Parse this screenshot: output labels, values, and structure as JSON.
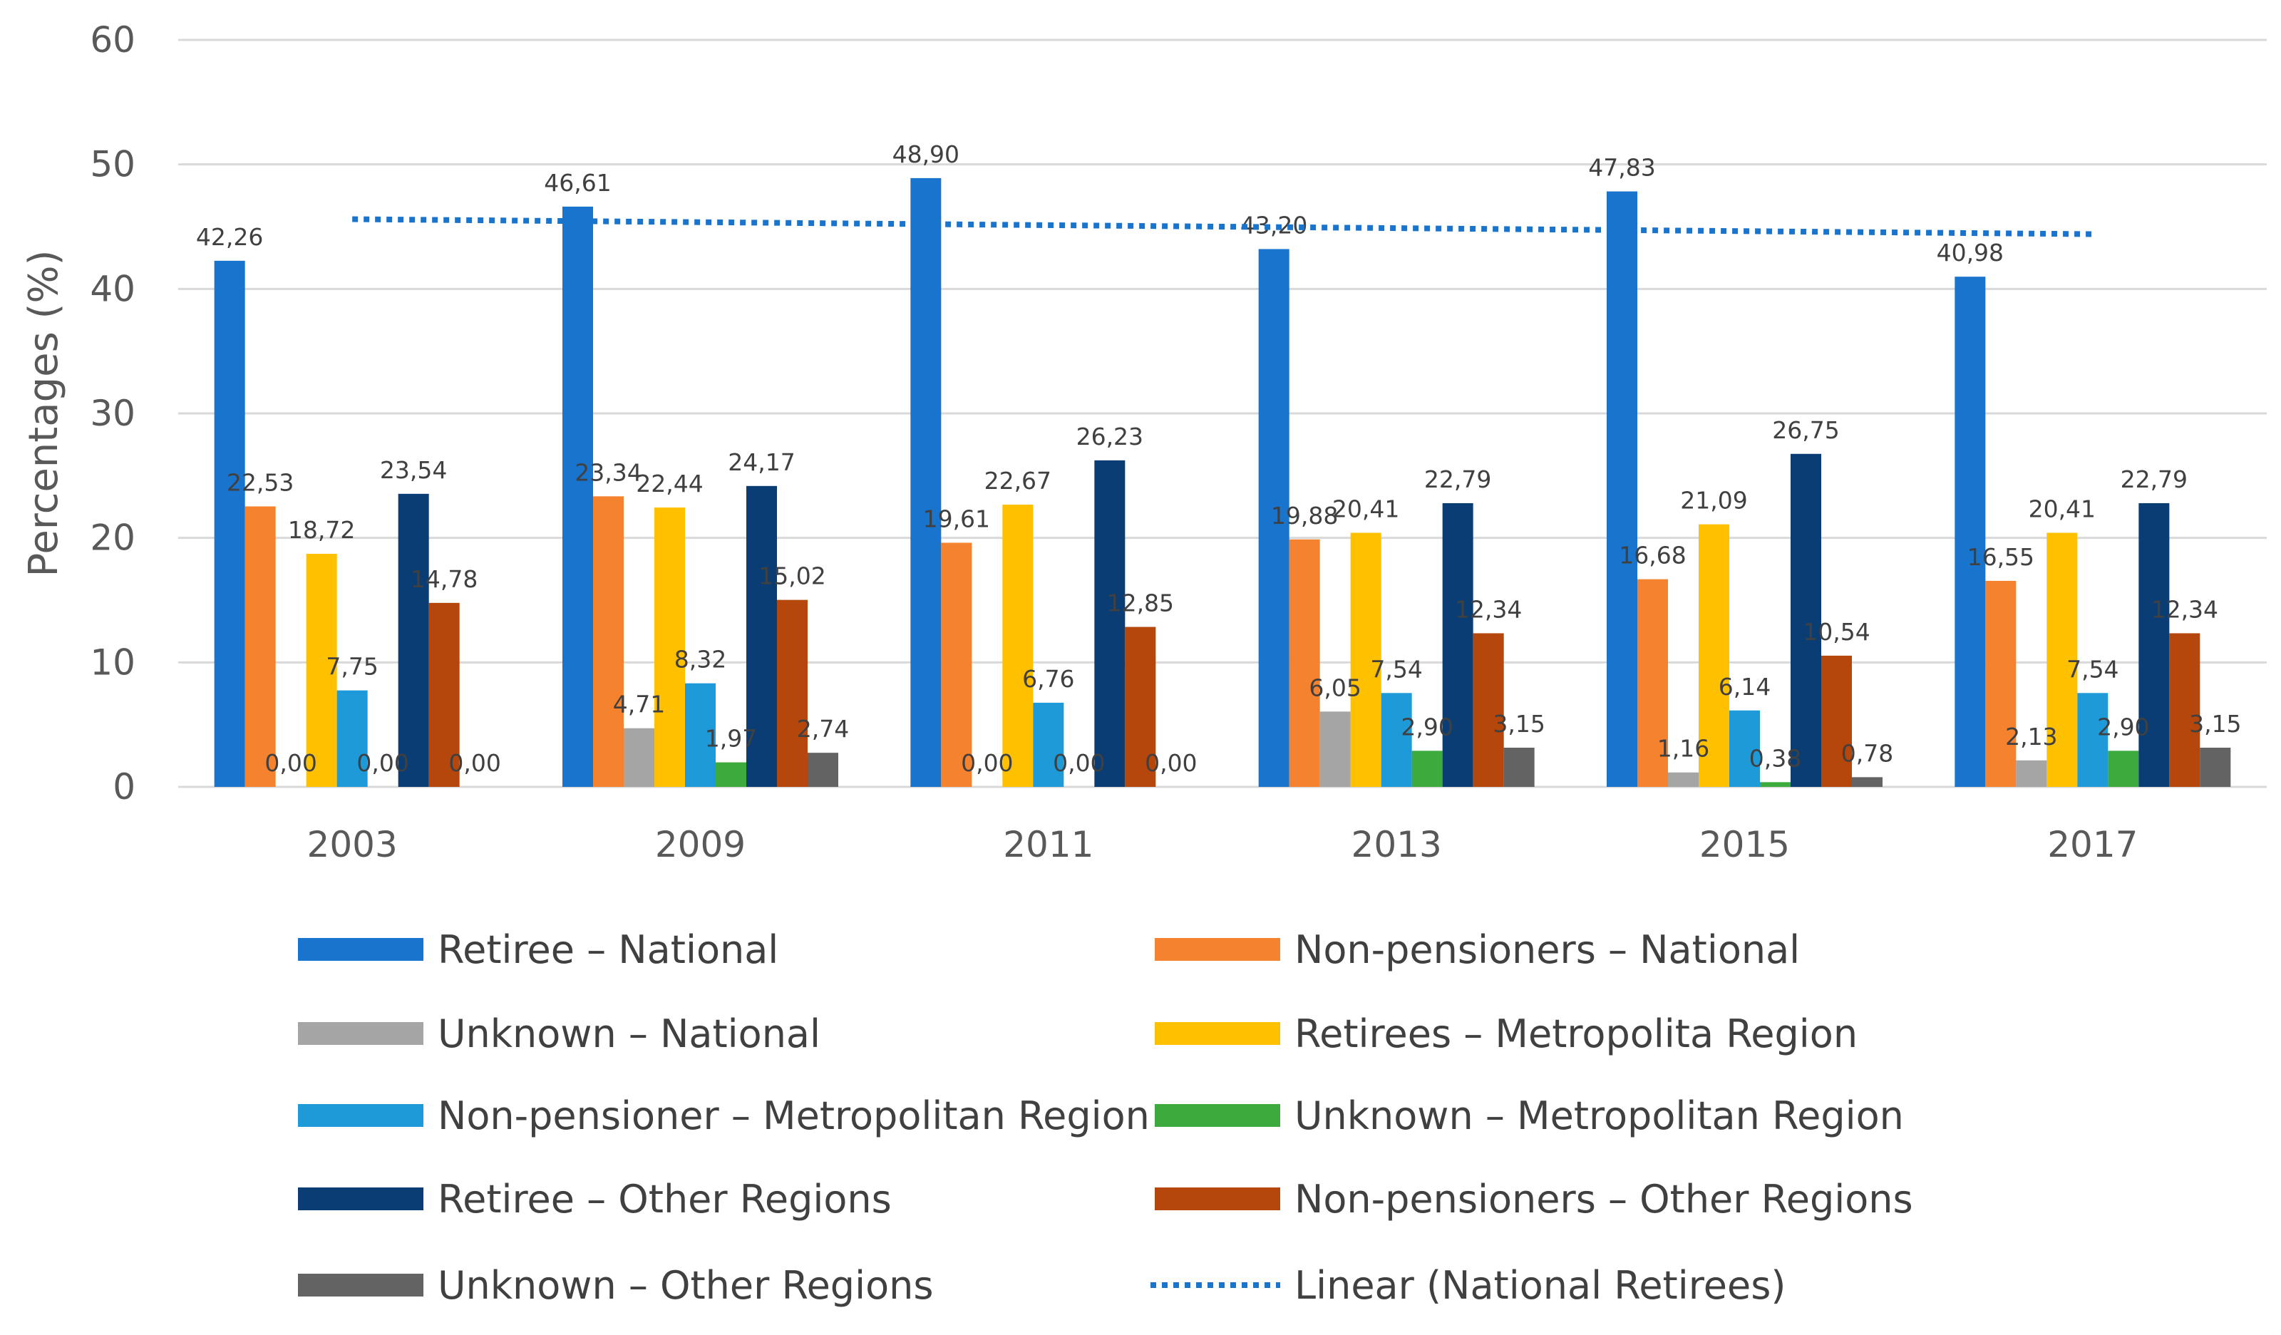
{
  "chart_data": {
    "type": "bar",
    "title": "",
    "xlabel": "",
    "ylabel": "Percentages (%)",
    "ylim": [
      0,
      60
    ],
    "yticks": [
      "0",
      "10",
      "20",
      "30",
      "40",
      "50",
      "60"
    ],
    "grid": true,
    "legend_position": "bottom",
    "categories": [
      "2003",
      "2009",
      "2011",
      "2013",
      "2015",
      "2017"
    ],
    "series": [
      {
        "name": "Retiree – National",
        "color": "#1874CD",
        "values": [
          42.26,
          46.61,
          48.9,
          43.2,
          47.83,
          40.98
        ],
        "labels": [
          "42,26",
          "46,61",
          "48,90",
          "43,20",
          "47,83",
          "40,98"
        ]
      },
      {
        "name": "Non-pensioners – National",
        "color": "#F5822E",
        "values": [
          22.53,
          23.34,
          19.61,
          19.88,
          16.68,
          16.55
        ],
        "labels": [
          "22,53",
          "23,34",
          "19,61",
          "19,88",
          "16,68",
          "16,55"
        ]
      },
      {
        "name": "Unknown – National",
        "color": "#A5A5A5",
        "values": [
          0.0,
          4.71,
          0.0,
          6.05,
          1.16,
          2.13
        ],
        "labels": [
          "0,00",
          "4,71",
          "0,00",
          "6,05",
          "1,16",
          "2,13"
        ]
      },
      {
        "name": "Retirees – Metropolita Region",
        "color": "#FFC000",
        "values": [
          18.72,
          22.44,
          22.67,
          20.41,
          21.09,
          20.41
        ],
        "labels": [
          "18,72",
          "22,44",
          "22,67",
          "20,41",
          "21,09",
          "20,41"
        ]
      },
      {
        "name": "Non-pensioner – Metropolitan Region",
        "color": "#1E9AD8",
        "values": [
          7.75,
          8.32,
          6.76,
          7.54,
          6.14,
          7.54
        ],
        "labels": [
          "7,75",
          "8,32",
          "6,76",
          "7,54",
          "6,14",
          "7,54"
        ]
      },
      {
        "name": "Unknown – Metropolitan Region",
        "color": "#3DAA3D",
        "values": [
          0.0,
          1.97,
          0.0,
          2.9,
          0.38,
          2.9
        ],
        "labels": [
          "0,00",
          "1,97",
          "0,00",
          "2,90",
          "0,38",
          "2,90"
        ]
      },
      {
        "name": "Retiree – Other Regions",
        "color": "#0A3D73",
        "values": [
          23.54,
          24.17,
          26.23,
          22.79,
          26.75,
          22.79
        ],
        "labels": [
          "23,54",
          "24,17",
          "26,23",
          "22,79",
          "26,75",
          "22,79"
        ]
      },
      {
        "name": "Non-pensioners – Other Regions",
        "color": "#B5470C",
        "values": [
          14.78,
          15.02,
          12.85,
          12.34,
          10.54,
          12.34
        ],
        "labels": [
          "14,78",
          "15,02",
          "12,85",
          "12,34",
          "10,54",
          "12,34"
        ]
      },
      {
        "name": "Unknown – Other Regions",
        "color": "#636363",
        "values": [
          0.0,
          2.74,
          0.0,
          3.15,
          0.78,
          3.15
        ],
        "labels": [
          "0,00",
          "2,74",
          "0,00",
          "3,15",
          "0,78",
          "3,15"
        ]
      }
    ],
    "trendline": {
      "name": "Linear (National Retirees)",
      "color": "#1874CD",
      "style": "dotted",
      "start": 45.6,
      "end": 44.4
    }
  }
}
